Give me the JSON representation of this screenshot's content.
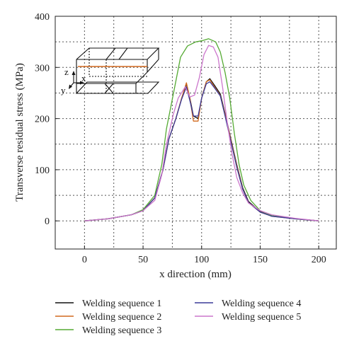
{
  "chart_data": {
    "type": "line",
    "xlabel": "x direction (mm)",
    "ylabel": "Transverse residual stress (MPa)",
    "xlim": [
      -25,
      215
    ],
    "ylim": [
      -55,
      400
    ],
    "x_ticks": [
      0,
      50,
      100,
      150,
      200
    ],
    "y_ticks": [
      0,
      100,
      200,
      300,
      400
    ],
    "grid": true,
    "legend_position": "bottom",
    "inset": {
      "labels": [
        "z",
        "x",
        "y"
      ]
    },
    "series": [
      {
        "name": "Welding sequence 1",
        "color": "#111111",
        "points": [
          [
            0,
            0
          ],
          [
            20,
            4
          ],
          [
            40,
            12
          ],
          [
            50,
            20
          ],
          [
            60,
            45
          ],
          [
            67,
            100
          ],
          [
            72,
            160
          ],
          [
            78,
            200
          ],
          [
            83,
            240
          ],
          [
            87,
            268
          ],
          [
            90,
            240
          ],
          [
            93,
            205
          ],
          [
            97,
            200
          ],
          [
            100,
            240
          ],
          [
            104,
            272
          ],
          [
            107,
            278
          ],
          [
            111,
            265
          ],
          [
            116,
            248
          ],
          [
            120,
            210
          ],
          [
            125,
            160
          ],
          [
            130,
            110
          ],
          [
            135,
            65
          ],
          [
            140,
            38
          ],
          [
            150,
            18
          ],
          [
            160,
            10
          ],
          [
            180,
            4
          ],
          [
            200,
            0
          ]
        ]
      },
      {
        "name": "Welding sequence 2",
        "color": "#d2691e",
        "points": [
          [
            0,
            0
          ],
          [
            20,
            4
          ],
          [
            40,
            12
          ],
          [
            50,
            20
          ],
          [
            60,
            45
          ],
          [
            67,
            100
          ],
          [
            72,
            160
          ],
          [
            78,
            200
          ],
          [
            83,
            240
          ],
          [
            87,
            270
          ],
          [
            90,
            240
          ],
          [
            93,
            195
          ],
          [
            97,
            195
          ],
          [
            100,
            240
          ],
          [
            104,
            272
          ],
          [
            107,
            276
          ],
          [
            111,
            262
          ],
          [
            116,
            245
          ],
          [
            120,
            208
          ],
          [
            125,
            158
          ],
          [
            130,
            108
          ],
          [
            135,
            63
          ],
          [
            140,
            36
          ],
          [
            150,
            17
          ],
          [
            160,
            9
          ],
          [
            180,
            4
          ],
          [
            200,
            0
          ]
        ]
      },
      {
        "name": "Welding sequence 3",
        "color": "#55aa33",
        "points": [
          [
            0,
            0
          ],
          [
            20,
            4
          ],
          [
            40,
            12
          ],
          [
            50,
            22
          ],
          [
            60,
            50
          ],
          [
            66,
            110
          ],
          [
            70,
            180
          ],
          [
            76,
            250
          ],
          [
            82,
            320
          ],
          [
            88,
            342
          ],
          [
            95,
            350
          ],
          [
            100,
            352
          ],
          [
            106,
            356
          ],
          [
            112,
            350
          ],
          [
            116,
            330
          ],
          [
            120,
            290
          ],
          [
            124,
            240
          ],
          [
            128,
            170
          ],
          [
            132,
            110
          ],
          [
            136,
            70
          ],
          [
            142,
            40
          ],
          [
            150,
            20
          ],
          [
            160,
            10
          ],
          [
            180,
            4
          ],
          [
            200,
            0
          ]
        ]
      },
      {
        "name": "Welding sequence 4",
        "color": "#3a3a99",
        "points": [
          [
            0,
            0
          ],
          [
            20,
            4
          ],
          [
            40,
            12
          ],
          [
            50,
            20
          ],
          [
            60,
            45
          ],
          [
            67,
            100
          ],
          [
            72,
            160
          ],
          [
            78,
            200
          ],
          [
            83,
            238
          ],
          [
            87,
            262
          ],
          [
            90,
            235
          ],
          [
            93,
            205
          ],
          [
            97,
            205
          ],
          [
            100,
            240
          ],
          [
            104,
            268
          ],
          [
            107,
            272
          ],
          [
            111,
            260
          ],
          [
            116,
            244
          ],
          [
            120,
            205
          ],
          [
            125,
            155
          ],
          [
            130,
            105
          ],
          [
            135,
            62
          ],
          [
            140,
            36
          ],
          [
            150,
            17
          ],
          [
            160,
            9
          ],
          [
            180,
            4
          ],
          [
            200,
            0
          ]
        ]
      },
      {
        "name": "Welding sequence 5",
        "color": "#cc77cc",
        "points": [
          [
            0,
            0
          ],
          [
            20,
            4
          ],
          [
            40,
            12
          ],
          [
            50,
            20
          ],
          [
            60,
            40
          ],
          [
            66,
            90
          ],
          [
            70,
            150
          ],
          [
            76,
            210
          ],
          [
            80,
            240
          ],
          [
            86,
            262
          ],
          [
            90,
            242
          ],
          [
            94,
            246
          ],
          [
            98,
            280
          ],
          [
            102,
            325
          ],
          [
            106,
            343
          ],
          [
            110,
            340
          ],
          [
            114,
            320
          ],
          [
            118,
            260
          ],
          [
            122,
            190
          ],
          [
            126,
            130
          ],
          [
            130,
            85
          ],
          [
            135,
            55
          ],
          [
            140,
            35
          ],
          [
            150,
            20
          ],
          [
            160,
            12
          ],
          [
            180,
            5
          ],
          [
            200,
            0
          ]
        ]
      }
    ]
  }
}
